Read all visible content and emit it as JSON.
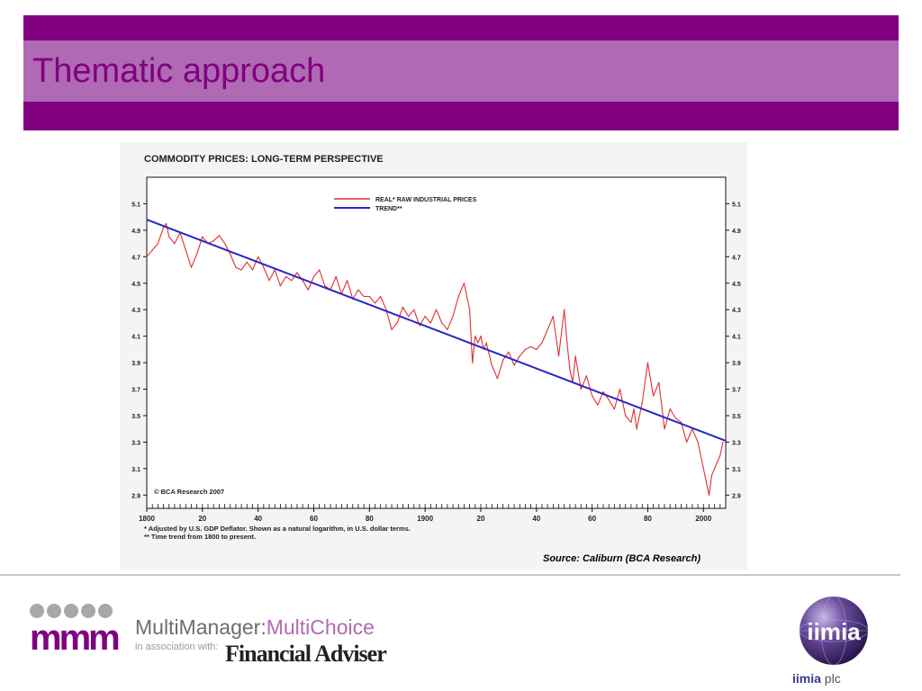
{
  "slide": {
    "title": "Thematic approach",
    "colors": {
      "band_dark": "#800080",
      "band_light": "#b06ab3",
      "title_text": "#800080"
    }
  },
  "chart_data": {
    "type": "line",
    "title": "COMMODITY PRICES: LONG-TERM PERSPECTIVE",
    "xlabel": "",
    "ylabel": "",
    "xlim": [
      1800,
      2008
    ],
    "ylim": [
      2.8,
      5.3
    ],
    "x_tick_labels": [
      "1800",
      "20",
      "40",
      "60",
      "80",
      "1900",
      "20",
      "40",
      "60",
      "80",
      "2000"
    ],
    "x_tick_values": [
      1800,
      1820,
      1840,
      1860,
      1880,
      1900,
      1920,
      1940,
      1960,
      1980,
      2000
    ],
    "y_ticks": [
      2.9,
      3.1,
      3.3,
      3.5,
      3.7,
      3.9,
      4.1,
      4.3,
      4.5,
      4.7,
      4.9,
      5.1
    ],
    "y_tick_labels": [
      "2.9",
      "3.1",
      "3.3",
      "3.5",
      "3.7",
      "3.9",
      "4.1",
      "4.3",
      "4.5",
      "4.7",
      "4.9",
      "5.1"
    ],
    "y_axis_both_sides": true,
    "legend_position": "top-center",
    "series": [
      {
        "name": "REAL* RAW INDUSTRIAL PRICES",
        "color": "#e03030",
        "x": [
          1800,
          1802,
          1804,
          1806,
          1807,
          1808,
          1810,
          1812,
          1814,
          1816,
          1818,
          1820,
          1822,
          1824,
          1826,
          1828,
          1830,
          1832,
          1834,
          1836,
          1838,
          1840,
          1842,
          1844,
          1846,
          1848,
          1850,
          1852,
          1854,
          1856,
          1858,
          1860,
          1862,
          1864,
          1866,
          1868,
          1870,
          1872,
          1874,
          1876,
          1878,
          1880,
          1882,
          1884,
          1886,
          1888,
          1890,
          1892,
          1894,
          1896,
          1898,
          1900,
          1902,
          1904,
          1906,
          1908,
          1910,
          1912,
          1914,
          1915,
          1916,
          1917,
          1918,
          1919,
          1920,
          1921,
          1922,
          1924,
          1926,
          1928,
          1930,
          1932,
          1934,
          1936,
          1938,
          1940,
          1942,
          1944,
          1946,
          1948,
          1950,
          1951,
          1952,
          1953,
          1954,
          1956,
          1958,
          1960,
          1962,
          1964,
          1966,
          1968,
          1970,
          1972,
          1974,
          1975,
          1976,
          1978,
          1980,
          1982,
          1984,
          1986,
          1988,
          1990,
          1992,
          1994,
          1996,
          1998,
          2000,
          2001,
          2002,
          2003,
          2004,
          2005,
          2006,
          2007
        ],
        "values": [
          4.7,
          4.75,
          4.8,
          4.92,
          4.95,
          4.85,
          4.8,
          4.88,
          4.75,
          4.62,
          4.72,
          4.85,
          4.8,
          4.82,
          4.86,
          4.8,
          4.72,
          4.62,
          4.6,
          4.66,
          4.6,
          4.7,
          4.62,
          4.52,
          4.6,
          4.48,
          4.55,
          4.52,
          4.58,
          4.52,
          4.45,
          4.55,
          4.6,
          4.48,
          4.45,
          4.55,
          4.42,
          4.52,
          4.38,
          4.45,
          4.4,
          4.4,
          4.35,
          4.4,
          4.3,
          4.15,
          4.2,
          4.32,
          4.25,
          4.3,
          4.18,
          4.25,
          4.2,
          4.3,
          4.2,
          4.15,
          4.25,
          4.4,
          4.5,
          4.4,
          4.3,
          3.9,
          4.1,
          4.05,
          4.1,
          4.0,
          4.05,
          3.88,
          3.78,
          3.92,
          3.98,
          3.88,
          3.95,
          4.0,
          4.02,
          4.0,
          4.05,
          4.15,
          4.25,
          3.95,
          4.3,
          4.05,
          3.85,
          3.75,
          3.95,
          3.7,
          3.8,
          3.65,
          3.58,
          3.68,
          3.62,
          3.55,
          3.7,
          3.5,
          3.45,
          3.55,
          3.4,
          3.6,
          3.9,
          3.65,
          3.75,
          3.4,
          3.55,
          3.48,
          3.45,
          3.3,
          3.4,
          3.3,
          3.1,
          3.0,
          2.9,
          3.05,
          3.1,
          3.15,
          3.2,
          3.3
        ]
      },
      {
        "name": "TREND**",
        "color": "#2626c8",
        "x": [
          1800,
          2008
        ],
        "values": [
          4.98,
          3.31
        ]
      }
    ],
    "annotations": [
      "© BCA Research 2007"
    ],
    "footnotes": [
      "* Adjusted by U.S. GDP Deflator. Shown as a natural logarithm, in U.S. dollar terms.",
      "** Time trend from 1800 to present."
    ]
  },
  "source_text": "Source: Caliburn (BCA Research)",
  "footer": {
    "mm_logo_text": "mmm",
    "brand_name": "MultiManager:",
    "brand_accent": "MultiChoice",
    "association": "in association with:",
    "partner": "Financial Adviser",
    "globe_text": "iimia",
    "company_bold": "iimia",
    "company_suffix": "plc",
    "colors": {
      "brand_purple": "#800080",
      "brand_grey": "#6d6d6d",
      "globe": "#4a2f7a"
    }
  }
}
